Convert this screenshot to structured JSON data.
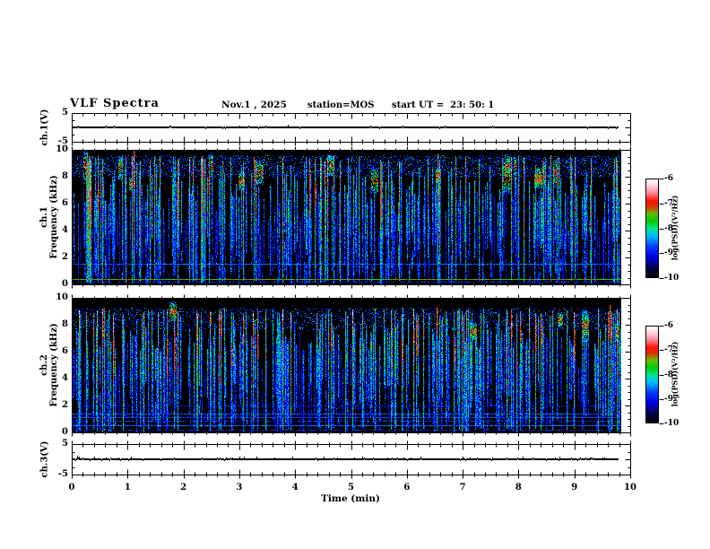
{
  "header": {
    "title": "VLF Spectra",
    "date": "Nov.1 , 2025",
    "station": "station=MOS",
    "start_ut": "start UT =  23: 50: 1"
  },
  "xaxis": {
    "label": "Time (min)",
    "lim": [
      0,
      10
    ],
    "ticks": [
      0,
      1,
      2,
      3,
      4,
      5,
      6,
      7,
      8,
      9,
      10
    ],
    "minor_step": 0.2,
    "data_end_min": 9.8
  },
  "colorbar": {
    "label": "log(PSD)(V²/Hz)",
    "ticks": [
      -6,
      -7,
      -8,
      -9,
      -10
    ],
    "range": [
      -10,
      -6
    ],
    "stops": [
      {
        "p": 0.0,
        "color": "#000000"
      },
      {
        "p": 0.1,
        "color": "#000055"
      },
      {
        "p": 0.22,
        "color": "#0000ee"
      },
      {
        "p": 0.32,
        "color": "#0044ff"
      },
      {
        "p": 0.42,
        "color": "#00bbff"
      },
      {
        "p": 0.5,
        "color": "#00e688"
      },
      {
        "p": 0.57,
        "color": "#00cc00"
      },
      {
        "p": 0.65,
        "color": "#66bb00"
      },
      {
        "p": 0.72,
        "color": "#dd3300"
      },
      {
        "p": 0.78,
        "color": "#ff1100"
      },
      {
        "p": 0.86,
        "color": "#ff8899"
      },
      {
        "p": 0.94,
        "color": "#ffd5e0"
      },
      {
        "p": 1.0,
        "color": "#ffffff"
      }
    ]
  },
  "chart_data": [
    {
      "type": "line",
      "id": "ch1-voltage",
      "ylabel": "ch.1(V)",
      "ylim": [
        -5,
        5
      ],
      "yticks": [
        5,
        -5
      ],
      "series": [
        {
          "name": "ch.1 voltage",
          "mean_v": 0,
          "description": "nearly flat trace at 0 V from 0 to 9.8 min with tiny spikes"
        }
      ],
      "appearance": {
        "seed": 314,
        "lw": 2,
        "jitter": 0.04,
        "spike_prob": 0.004,
        "spike_amp": 2
      }
    },
    {
      "type": "heatmap",
      "id": "ch1-spectrogram",
      "ylabel_line1": "ch.1",
      "ylabel_line2": "Frequency (kHz)",
      "ylim": [
        0,
        10
      ],
      "yticks": [
        0,
        2,
        4,
        6,
        8,
        10
      ],
      "ytick_minor_step": 0.5,
      "description": "VLF spectrogram: black background, dense vertical broadband sferic streaks (blue/cyan/green, red-white hot spots near 7-9.6 kHz), speckle band 8-9.6 kHz",
      "hlines": [
        {
          "f_khz": 1.47,
          "intensity": 0.34,
          "dotted": false
        },
        {
          "f_khz": 0.35,
          "intensity": 0.62,
          "dotted": false
        },
        {
          "f_khz": 0.12,
          "intensity": 0.3,
          "dotted": true
        }
      ],
      "appearance": {
        "seed": 20251101,
        "strong": 0.09,
        "med": 0.34,
        "weak": 0.55,
        "topHi": 9.65,
        "bandLo": 8.0,
        "bandHi": 9.6,
        "bandDots": 7,
        "redCore": 0.25,
        "clusterProb": 0.02
      }
    },
    {
      "type": "heatmap",
      "id": "ch2-spectrogram",
      "ylabel_line1": "ch.2",
      "ylabel_line2": "Frequency (kHz)",
      "ylim": [
        0,
        10
      ],
      "yticks": [
        0,
        2,
        4,
        6,
        8,
        10
      ],
      "ytick_minor_step": 0.5,
      "description": "VLF spectrogram like ch.1, streak tops near 9.3 kHz, red cores mid-streak, several horizontal blue interference lines between 0.4 and 2 kHz",
      "hlines": [
        {
          "f_khz": 1.95,
          "intensity": 0.26,
          "dotted": true
        },
        {
          "f_khz": 1.35,
          "intensity": 0.32,
          "dotted": false
        },
        {
          "f_khz": 1.05,
          "intensity": 0.3,
          "dotted": false
        },
        {
          "f_khz": 0.8,
          "intensity": 0.3,
          "dotted": true
        },
        {
          "f_khz": 0.45,
          "intensity": 0.34,
          "dotted": false
        },
        {
          "f_khz": 0.15,
          "intensity": 0.28,
          "dotted": true
        }
      ],
      "appearance": {
        "seed": 23501,
        "strong": 0.09,
        "med": 0.36,
        "weak": 0.52,
        "topHi": 9.3,
        "bandLo": 7.6,
        "bandHi": 9.25,
        "bandDots": 5,
        "redCore": 0.45,
        "clusterProb": 0.012
      }
    },
    {
      "type": "line",
      "id": "ch3-voltage",
      "ylabel": "ch.3(V)",
      "ylim": [
        -5,
        5
      ],
      "yticks": [
        5,
        -5
      ],
      "series": [
        {
          "name": "ch.3 voltage",
          "mean_v": 0,
          "description": "nearly flat trace at 0 V from 0 to 9.8 min with frequent small upward blips"
        }
      ],
      "appearance": {
        "seed": 999,
        "lw": 2,
        "jitter": 0.06,
        "spike_prob": 0.05,
        "spike_amp": 2
      }
    }
  ]
}
